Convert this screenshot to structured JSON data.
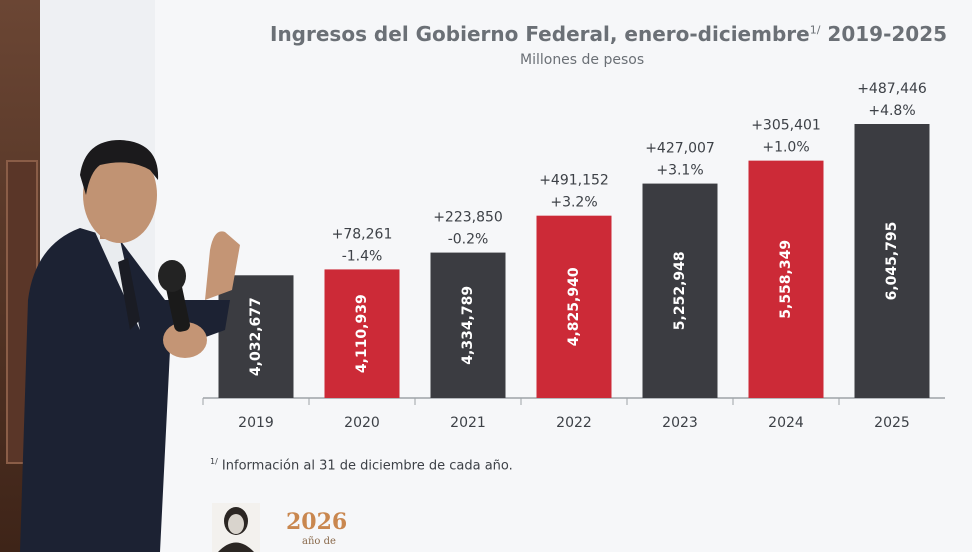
{
  "chart_data": {
    "type": "bar",
    "title": "Ingresos del Gobierno Federal, enero-diciembre",
    "title_sup": "1/",
    "title_years": "2019-2025",
    "subtitle": "Millones de pesos",
    "categories": [
      "2019",
      "2020",
      "2021",
      "2022",
      "2023",
      "2024",
      "2025"
    ],
    "values": [
      4032677,
      4110939,
      4334789,
      4825940,
      5252948,
      5558349,
      6045795
    ],
    "value_labels": [
      "4,032,677",
      "4,110,939",
      "4,334,789",
      "4,825,940",
      "5,252,948",
      "5,558,349",
      "6,045,795"
    ],
    "change_abs": [
      "",
      "+78,261",
      "+223,850",
      "+491,152",
      "+427,007",
      "+305,401",
      "+487,446"
    ],
    "change_pct": [
      "",
      "-1.4%",
      "-0.2%",
      "+3.2%",
      "+3.1%",
      "+1.0%",
      "+4.8%"
    ],
    "bar_colors": [
      "#3b3c41",
      "#cc2a37",
      "#3b3c41",
      "#cc2a37",
      "#3b3c41",
      "#cc2a37",
      "#3b3c41"
    ],
    "grid": false,
    "legend": "none"
  },
  "footnote": {
    "marker": "1/",
    "text": " Información al 31 de diciembre de cada año."
  },
  "logo": {
    "year": "2026",
    "tagline": "año de"
  }
}
